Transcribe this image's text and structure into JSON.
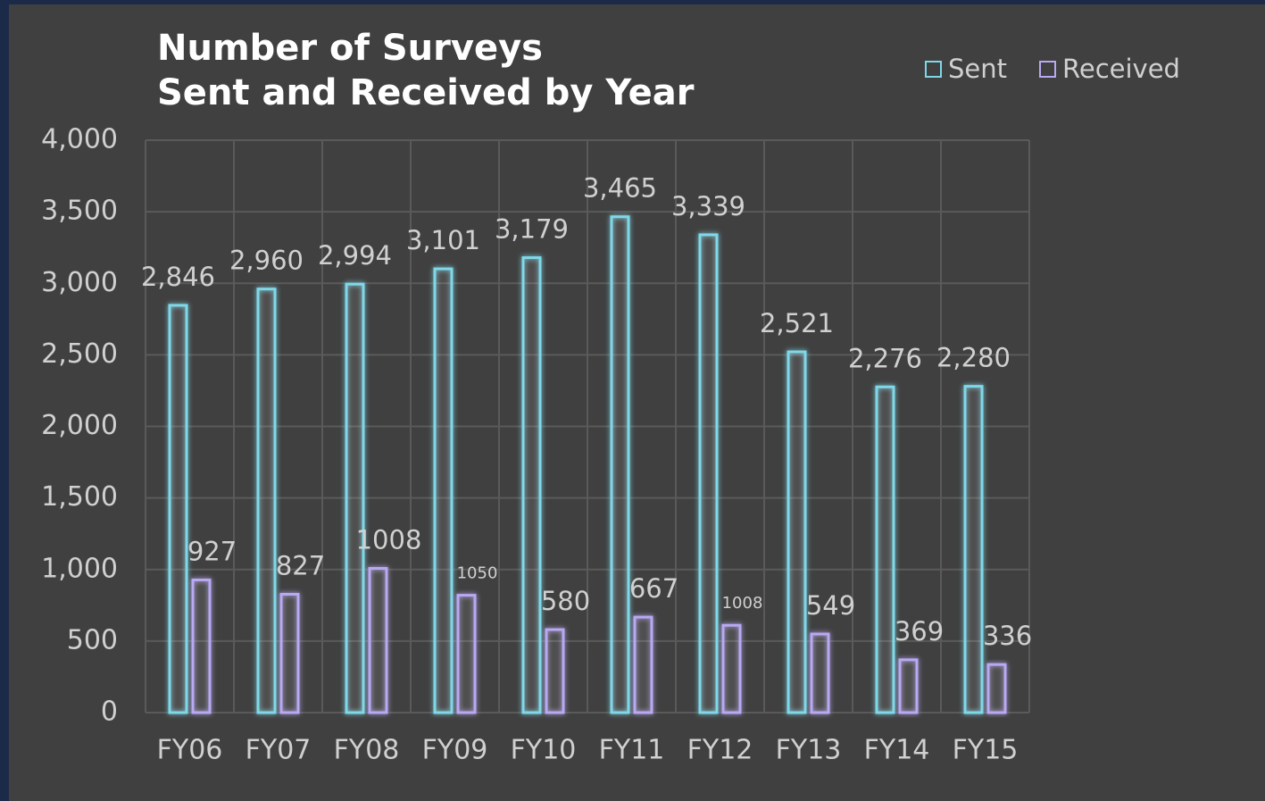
{
  "chart_data": {
    "type": "bar",
    "title": [
      "Number of Surveys",
      "Sent and Received by Year"
    ],
    "categories": [
      "FY06",
      "FY07",
      "FY08",
      "FY09",
      "FY10",
      "FY11",
      "FY12",
      "FY13",
      "FY14",
      "FY15"
    ],
    "series": [
      {
        "name": "Sent",
        "color": "#7fd8e8",
        "values": [
          2846,
          2960,
          2994,
          3101,
          3179,
          3465,
          3339,
          2521,
          2276,
          2280
        ],
        "value_labels": [
          "2,846",
          "2,960",
          "2,994",
          "3,101",
          "3,179",
          "3,465",
          "3,339",
          "2,521",
          "2,276",
          "2,280"
        ]
      },
      {
        "name": "Received",
        "color": "#b9a8f2",
        "values": [
          927,
          827,
          1008,
          820,
          580,
          667,
          610,
          549,
          369,
          336
        ],
        "value_labels": [
          "927",
          "827",
          "1008",
          null,
          "580",
          "667",
          null,
          "549",
          "369",
          "336"
        ]
      }
    ],
    "annotations": [
      "1050",
      "1008"
    ],
    "ylim": [
      0,
      4000
    ],
    "yticks": [
      0,
      500,
      {
        "value": 1000,
        "label": "1,000"
      },
      {
        "value": 1500,
        "label": "1,500"
      },
      {
        "value": 2000,
        "label": "2,000"
      },
      {
        "value": 2500,
        "label": "2,500"
      },
      {
        "value": 3000,
        "label": "3,000"
      },
      {
        "value": 3500,
        "label": "3,500"
      },
      {
        "value": 4000,
        "label": "4,000"
      }
    ],
    "grid": true,
    "legend": "top-right"
  }
}
